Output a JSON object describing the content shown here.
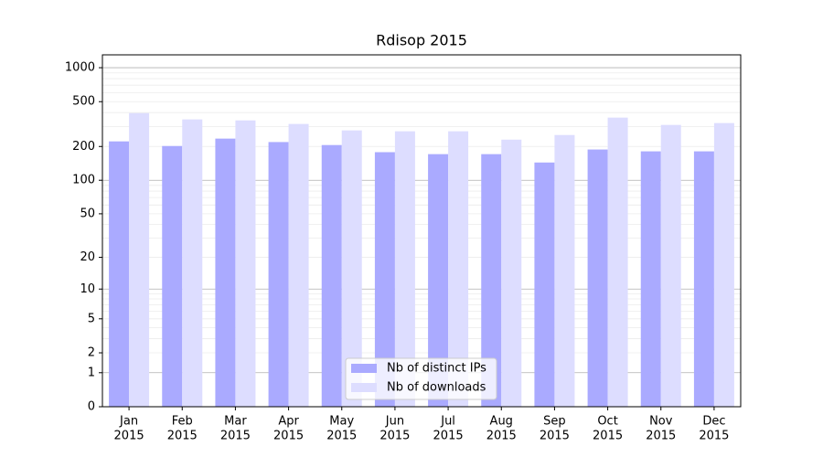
{
  "chart_data": {
    "type": "bar",
    "title": "Rdisop 2015",
    "categories": [
      [
        "Jan",
        "2015"
      ],
      [
        "Feb",
        "2015"
      ],
      [
        "Mar",
        "2015"
      ],
      [
        "Apr",
        "2015"
      ],
      [
        "May",
        "2015"
      ],
      [
        "Jun",
        "2015"
      ],
      [
        "Jul",
        "2015"
      ],
      [
        "Aug",
        "2015"
      ],
      [
        "Sep",
        "2015"
      ],
      [
        "Oct",
        "2015"
      ],
      [
        "Nov",
        "2015"
      ],
      [
        "Dec",
        "2015"
      ]
    ],
    "series": [
      {
        "name": "Nb of distinct IPs",
        "color": "#aaaaff",
        "values": [
          222,
          202,
          235,
          219,
          206,
          178,
          171,
          171,
          144,
          188,
          181,
          181
        ]
      },
      {
        "name": "Nb of downloads",
        "color": "#ddddff",
        "values": [
          396,
          348,
          341,
          317,
          278,
          273,
          273,
          230,
          253,
          361,
          311,
          323
        ]
      }
    ],
    "yscale": "log1p",
    "ylim": [
      0,
      1300
    ],
    "yticks": [
      0,
      1,
      2,
      5,
      10,
      20,
      50,
      100,
      200,
      500,
      1000
    ],
    "ymajorgrid": [
      1,
      10,
      100,
      1000
    ],
    "yminorgrid": [
      2,
      3,
      4,
      5,
      6,
      7,
      8,
      9,
      20,
      30,
      40,
      50,
      60,
      70,
      80,
      90,
      200,
      300,
      400,
      500,
      600,
      700,
      800,
      900
    ],
    "grid": true,
    "legend": "lower center"
  }
}
